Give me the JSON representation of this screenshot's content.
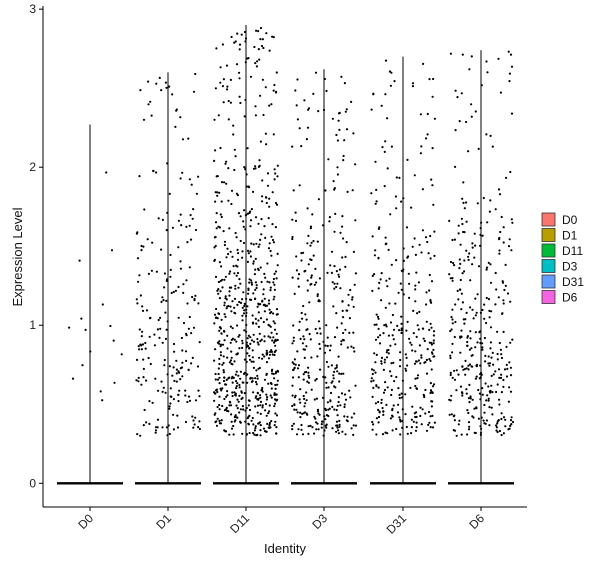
{
  "chart_data": {
    "type": "violin",
    "xlabel": "Identity",
    "ylabel": "Expression Level",
    "categories": [
      "D0",
      "D1",
      "D11",
      "D3",
      "D31",
      "D6"
    ],
    "ylim": [
      -0.15,
      3.02
    ],
    "yticks": [
      0,
      1,
      2,
      3
    ],
    "ytick_labels": [
      "0",
      "1",
      "2",
      "3"
    ],
    "grid": false,
    "legend_position": "right",
    "legend_entries": [
      "D0",
      "D1",
      "D11",
      "D3",
      "D31",
      "D6"
    ],
    "colors": [
      "#F8766D",
      "#B79F00",
      "#00BA38",
      "#00BFC4",
      "#619CFF",
      "#F564E3"
    ],
    "series": [
      {
        "category": "D0",
        "max": 2.27,
        "nonzero_points": 16,
        "high_band": [
          0.4,
          1.7
        ]
      },
      {
        "category": "D1",
        "max": 2.6,
        "nonzero_points": 230,
        "high_band": [
          0.3,
          2.3
        ]
      },
      {
        "category": "D11",
        "max": 2.9,
        "nonzero_points": 720,
        "high_band": [
          0.3,
          2.3
        ]
      },
      {
        "category": "D3",
        "max": 2.62,
        "nonzero_points": 360,
        "high_band": [
          0.3,
          2.1
        ]
      },
      {
        "category": "D31",
        "max": 2.7,
        "nonzero_points": 340,
        "high_band": [
          0.3,
          2.1
        ]
      },
      {
        "category": "D6",
        "max": 2.74,
        "nonzero_points": 360,
        "high_band": [
          0.3,
          2.1
        ]
      }
    ]
  }
}
